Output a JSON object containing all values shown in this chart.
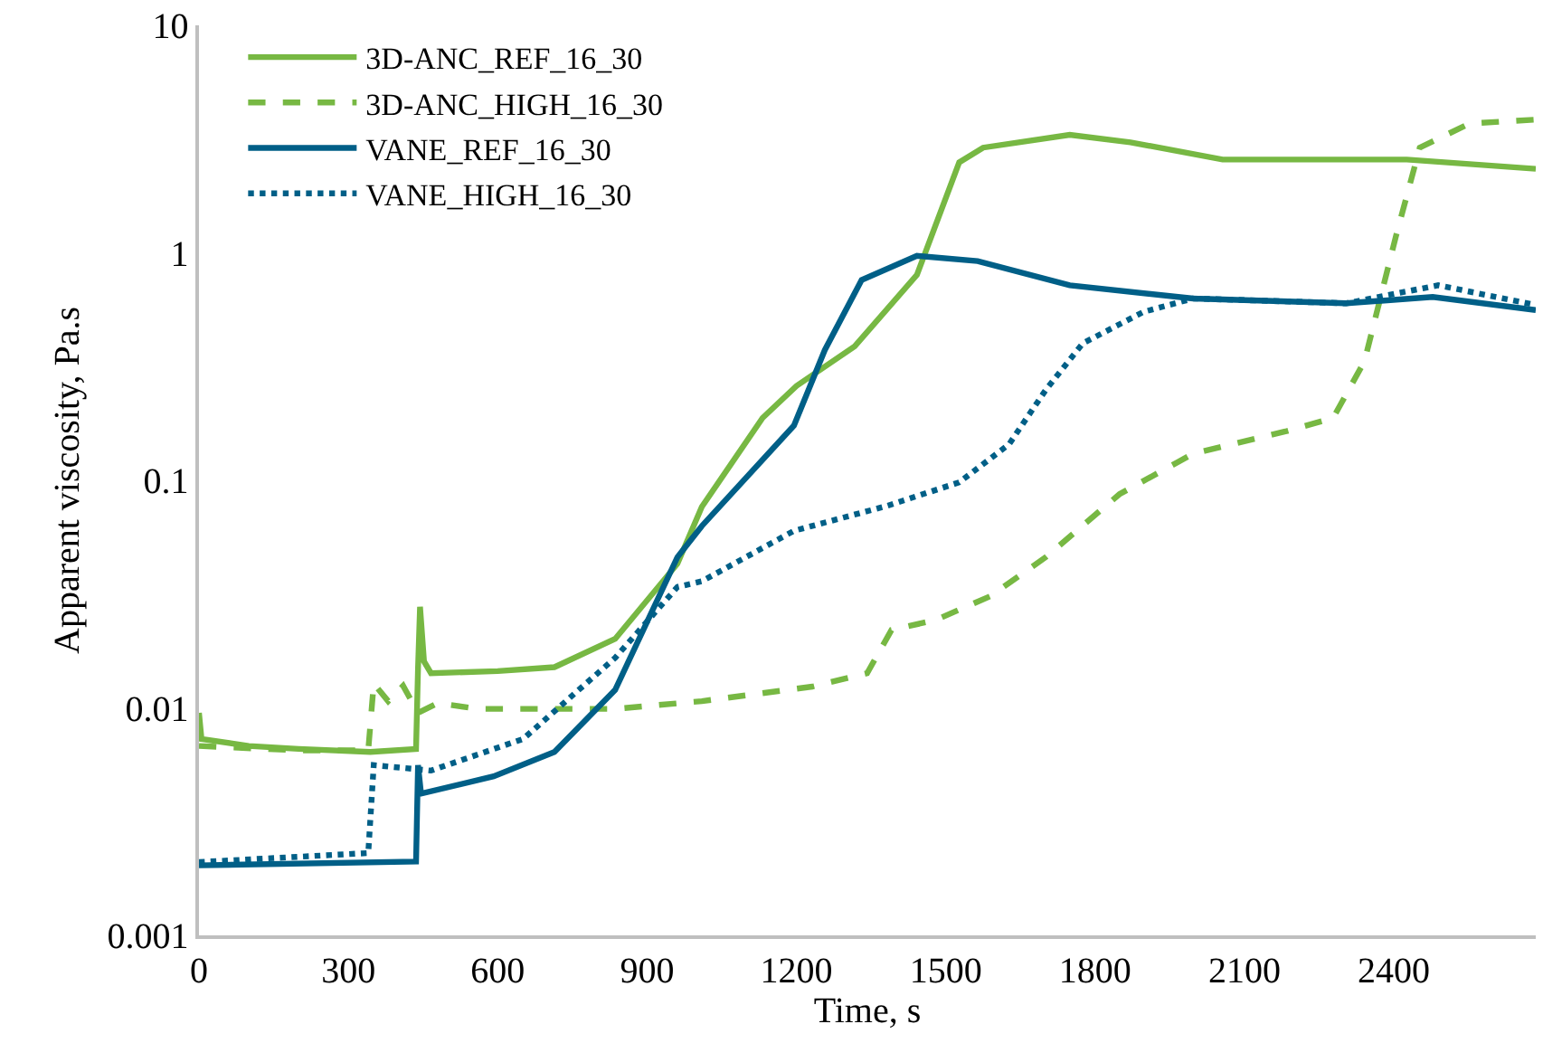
{
  "chart_data": {
    "type": "line",
    "xlabel": "Time, s",
    "ylabel": "Apparent viscosity, Pa.s",
    "log": "y",
    "legend": "top left",
    "marker": "none",
    "xlim": [
      0,
      2685
    ],
    "xticks": [
      0,
      300,
      600,
      900,
      1200,
      1500,
      1800,
      2100,
      2400
    ],
    "ylim": [
      0.001,
      10
    ],
    "yticks": [
      0.001,
      0.01,
      0.1,
      1,
      10
    ],
    "series": [
      {
        "name": "3D-ANC_REF_16_30",
        "color": "#77b843",
        "line_style": "solid",
        "x": [
          0,
          5,
          100,
          200,
          344,
          436,
          440,
          444,
          452,
          466,
          600,
          714,
          836,
          961,
          1010,
          1132,
          1200,
          1317,
          1442,
          1527,
          1575,
          1749,
          1871,
          2056,
          2426,
          2685
        ],
        "values": [
          0.0095,
          0.0073,
          0.0068,
          0.0066,
          0.0064,
          0.0066,
          0.015,
          0.0278,
          0.016,
          0.0142,
          0.0145,
          0.0151,
          0.0201,
          0.043,
          0.0765,
          0.188,
          0.26,
          0.388,
          0.8,
          2.5,
          2.9,
          3.3,
          3.06,
          2.57,
          2.57,
          2.34
        ]
      },
      {
        "name": "3D-ANC_HIGH_16_30",
        "color": "#77b843",
        "line_style": "dashed",
        "x": [
          0,
          200,
          340,
          351,
          380,
          410,
          440,
          480,
          560,
          651,
          836,
          1010,
          1232,
          1342,
          1391,
          1479,
          1590,
          1701,
          1849,
          1997,
          2182,
          2278,
          2341,
          2404,
          2452,
          2552,
          2685
        ],
        "values": [
          0.0068,
          0.0065,
          0.0065,
          0.0128,
          0.0107,
          0.0125,
          0.0095,
          0.0105,
          0.0099,
          0.0099,
          0.0099,
          0.0107,
          0.0124,
          0.0142,
          0.022,
          0.0243,
          0.031,
          0.046,
          0.087,
          0.131,
          0.164,
          0.188,
          0.334,
          1.18,
          2.9,
          3.7,
          3.85
        ]
      },
      {
        "name": "VANE_REF_16_30",
        "color": "#005f87",
        "line_style": "solid",
        "x": [
          0,
          436,
          440,
          446,
          592,
          714,
          836,
          961,
          1010,
          1195,
          1257,
          1331,
          1442,
          1564,
          1749,
          1997,
          2304,
          2478,
          2685
        ],
        "values": [
          0.00203,
          0.00211,
          0.0056,
          0.0042,
          0.005,
          0.0064,
          0.012,
          0.046,
          0.063,
          0.174,
          0.374,
          0.76,
          0.97,
          0.92,
          0.72,
          0.63,
          0.6,
          0.64,
          0.56
        ]
      },
      {
        "name": "VANE_HIGH_16_30",
        "color": "#005f87",
        "line_style": "dotted",
        "x": [
          0,
          340,
          351,
          466,
          651,
          836,
          961,
          1010,
          1195,
          1380,
          1527,
          1627,
          1701,
          1775,
          1897,
          1997,
          2304,
          2489,
          2685
        ],
        "values": [
          0.0021,
          0.0023,
          0.0056,
          0.0053,
          0.0073,
          0.0166,
          0.034,
          0.036,
          0.06,
          0.077,
          0.098,
          0.144,
          0.25,
          0.4,
          0.55,
          0.63,
          0.6,
          0.72,
          0.59
        ]
      }
    ]
  }
}
